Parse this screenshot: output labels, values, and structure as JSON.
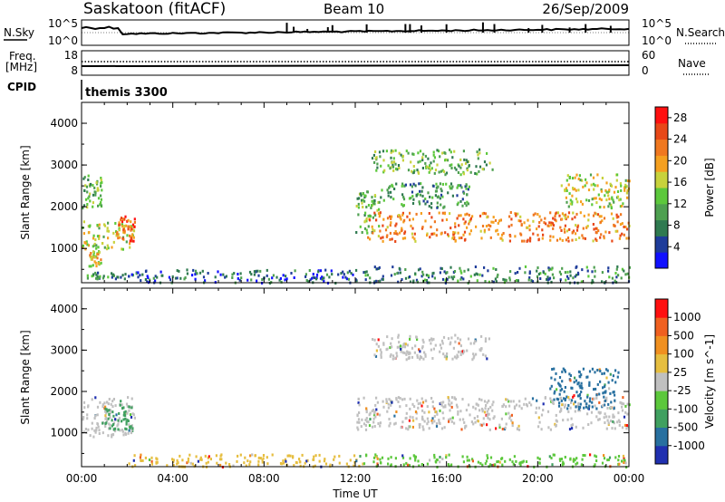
{
  "header": {
    "station": "Saskatoon (fitACF)",
    "beam": "Beam 10",
    "date": "26/Sep/2009"
  },
  "noise_panel": {
    "left_label": "N.Sky",
    "left_tick_hi": "10^5",
    "left_tick_lo": "10^0",
    "right_label": "N.Search",
    "right_tick_hi": "10^5",
    "right_tick_lo": "10^0"
  },
  "freq_panel": {
    "left_label_1": "Freq.",
    "left_label_2": "[MHz]",
    "left_tick_hi": "18",
    "left_tick_lo": "8",
    "right_label": "Nave",
    "right_tick_hi": "60",
    "right_tick_lo": "0"
  },
  "cpid_panel": {
    "label": "CPID",
    "value": "themis 3300"
  },
  "chart_data": [
    {
      "type": "heatmap",
      "panel": "power",
      "ylabel": "Slant Range [km]",
      "ylim": [
        180,
        4500
      ],
      "yticks": [
        "1000",
        "2000",
        "3000",
        "4000"
      ],
      "xticks": [
        "00:00",
        "04:00",
        "08:00",
        "12:00",
        "16:00",
        "20:00",
        "00:00"
      ],
      "colorbar_label": "Power [dB]",
      "colorbar_ticks": [
        "4",
        "8",
        "12",
        "16",
        "20",
        "24",
        "28"
      ],
      "colorbar_colors": [
        "#1010ff",
        "#1e3c9a",
        "#2f7a50",
        "#4ea050",
        "#5cc83c",
        "#c8d23c",
        "#f5a020",
        "#f07820",
        "#e84818",
        "#ff1010"
      ],
      "regions": [
        {
          "t0": 0.0,
          "t1": 1.9,
          "r0": 300,
          "r1": 450,
          "v": 10
        },
        {
          "t0": 0.0,
          "t1": 2.3,
          "r0": 1000,
          "r1": 1700,
          "v": 18
        },
        {
          "t0": 1.5,
          "t1": 2.3,
          "r0": 1200,
          "r1": 1800,
          "v": 26
        },
        {
          "t0": 0.0,
          "t1": 0.9,
          "r0": 2000,
          "r1": 2800,
          "v": 14
        },
        {
          "t0": 0.3,
          "t1": 0.9,
          "r0": 600,
          "r1": 1000,
          "v": 20
        },
        {
          "t0": 2.0,
          "t1": 12.3,
          "r0": 200,
          "r1": 520,
          "v": 8
        },
        {
          "t0": 12.0,
          "t1": 13.0,
          "r0": 1400,
          "r1": 2400,
          "v": 14
        },
        {
          "t0": 12.5,
          "t1": 24.0,
          "r0": 1200,
          "r1": 1900,
          "v": 24
        },
        {
          "t0": 13.0,
          "t1": 17.0,
          "r0": 2000,
          "r1": 2600,
          "v": 12
        },
        {
          "t0": 12.7,
          "t1": 18.0,
          "r0": 2800,
          "r1": 3400,
          "v": 14
        },
        {
          "t0": 21.0,
          "t1": 24.0,
          "r0": 2000,
          "r1": 2800,
          "v": 18
        },
        {
          "t0": 12.3,
          "t1": 24.0,
          "r0": 200,
          "r1": 600,
          "v": 10
        }
      ]
    },
    {
      "type": "heatmap",
      "panel": "velocity",
      "ylabel": "Slant Range [km]",
      "ylim": [
        180,
        4500
      ],
      "yticks": [
        "1000",
        "2000",
        "3000",
        "4000"
      ],
      "xticks": [
        "00:00",
        "04:00",
        "08:00",
        "12:00",
        "16:00",
        "20:00",
        "00:00"
      ],
      "xlabel": "Time UT",
      "colorbar_label": "Velocity [m s^-1]",
      "colorbar_ticks": [
        "1000",
        "500",
        "100",
        "25",
        "-25",
        "-100",
        "-500",
        "-1000"
      ],
      "colorbar_colors": [
        "#2030b0",
        "#2870a0",
        "#40a060",
        "#5cc83c",
        "#c0c0c0",
        "#e6be40",
        "#f09020",
        "#f06020",
        "#ff1010"
      ],
      "regions": [
        {
          "t0": 0.0,
          "t1": 2.3,
          "r0": 900,
          "r1": 1900,
          "v": "-25"
        },
        {
          "t0": 1.0,
          "t1": 2.2,
          "r0": 1100,
          "r1": 1700,
          "v": "100"
        },
        {
          "t0": 2.0,
          "t1": 12.3,
          "r0": 200,
          "r1": 500,
          "v": "-100"
        },
        {
          "t0": 12.0,
          "t1": 24.0,
          "r0": 1100,
          "r1": 1900,
          "v": "-25"
        },
        {
          "t0": 12.7,
          "t1": 18.0,
          "r0": 2800,
          "r1": 3400,
          "v": "-25"
        },
        {
          "t0": 20.5,
          "t1": 23.5,
          "r0": 1600,
          "r1": 2600,
          "v": "500"
        },
        {
          "t0": 12.3,
          "t1": 24.0,
          "r0": 200,
          "r1": 500,
          "v": "25"
        }
      ]
    }
  ]
}
